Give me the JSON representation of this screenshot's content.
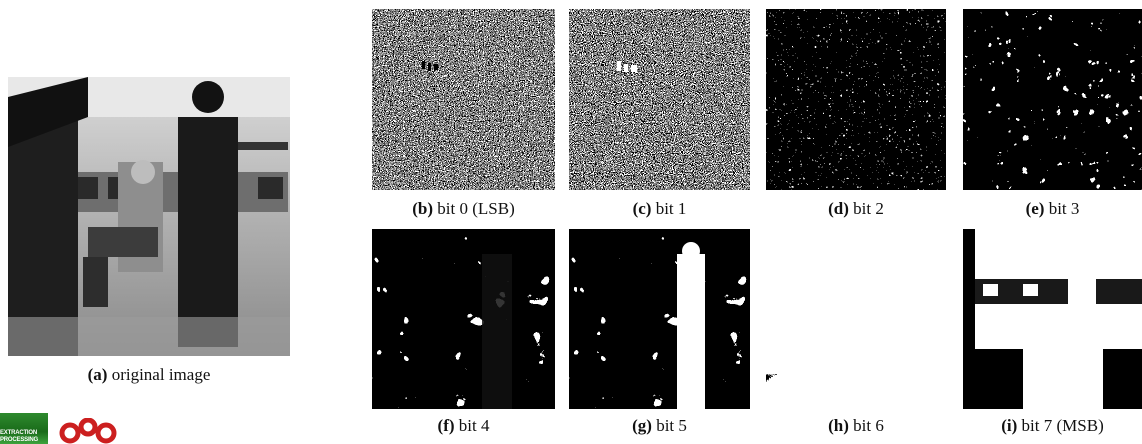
{
  "figure": {
    "panels": [
      {
        "id": "a",
        "letter": "(a)",
        "label": "original image"
      },
      {
        "id": "b",
        "letter": "(b)",
        "label": "bit 0 (LSB)"
      },
      {
        "id": "c",
        "letter": "(c)",
        "label": "bit 1"
      },
      {
        "id": "d",
        "letter": "(d)",
        "label": "bit 2"
      },
      {
        "id": "e",
        "letter": "(e)",
        "label": "bit 3"
      },
      {
        "id": "f",
        "letter": "(f)",
        "label": "bit 4"
      },
      {
        "id": "g",
        "letter": "(g)",
        "label": "bit 5"
      },
      {
        "id": "h",
        "letter": "(h)",
        "label": "bit 6"
      },
      {
        "id": "i",
        "letter": "(i)",
        "label": "bit 7 (MSB)"
      }
    ]
  },
  "logos": {
    "extraction_logo_text": "EXTRACTION PROCESSING"
  }
}
